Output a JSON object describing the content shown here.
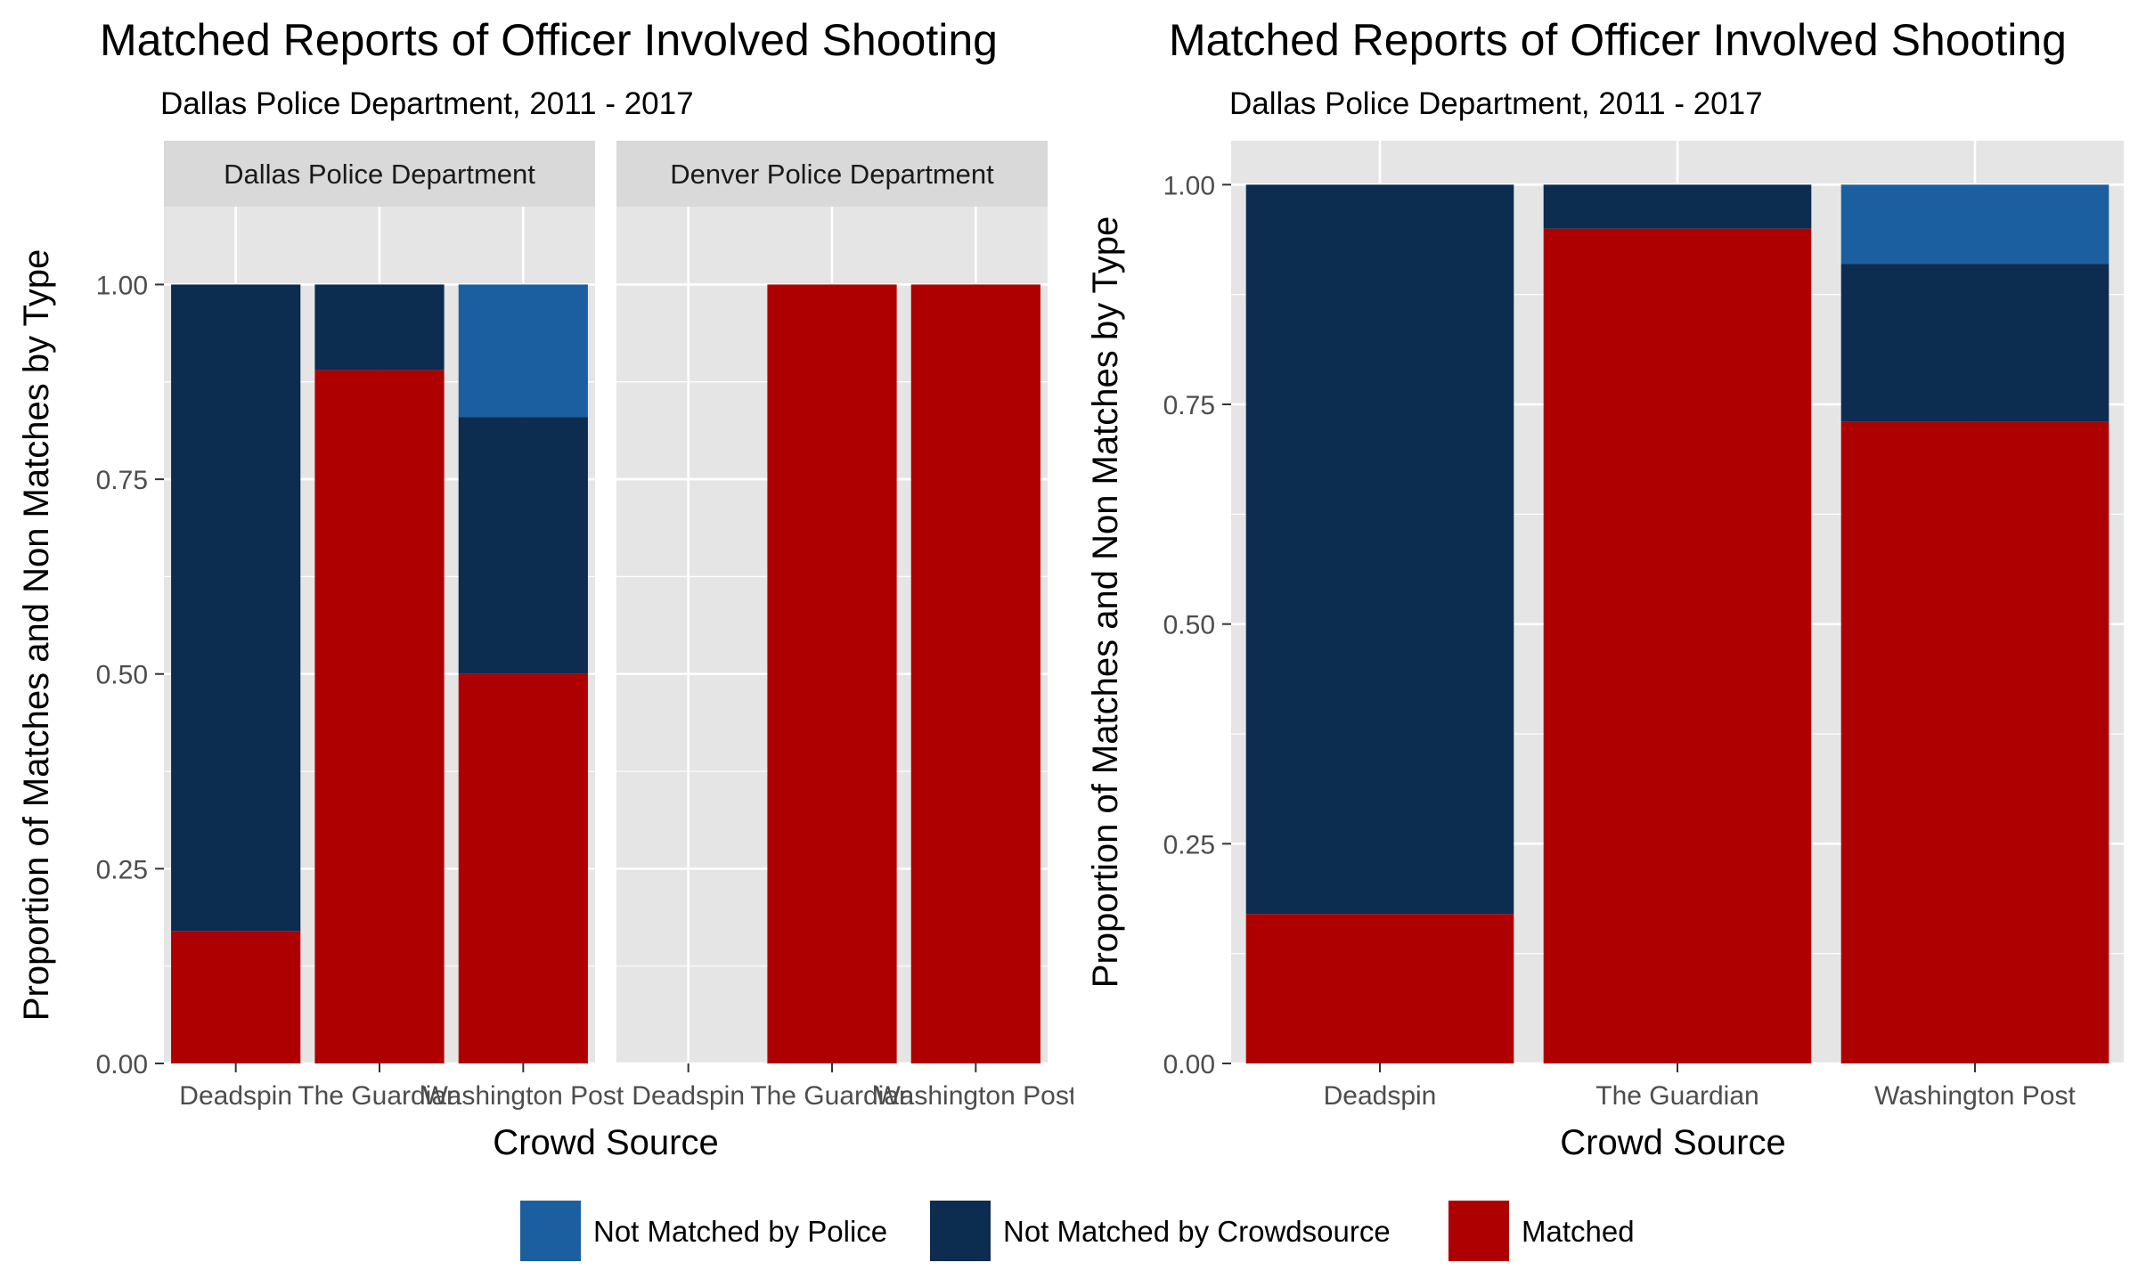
{
  "colors": {
    "matched": "#AE0000",
    "not_matched_by_crowdsource": "#0C2C50",
    "not_matched_by_police": "#1B5FA1",
    "panel_bg": "#E5E5E5",
    "strip_bg": "#D9D9D9",
    "grid": "#FFFFFF",
    "text": "#000000",
    "tick_text": "#4D4D4D"
  },
  "legend": {
    "position": "bottom",
    "items": [
      {
        "key": "not_matched_by_police",
        "label": "Not Matched by Police"
      },
      {
        "key": "not_matched_by_crowdsource",
        "label": "Not Matched by Crowdsource"
      },
      {
        "key": "matched",
        "label": "Matched"
      }
    ]
  },
  "chart_data": [
    {
      "type": "bar",
      "stacked": true,
      "faceted": true,
      "title": "Matched Reports of Officer Involved Shooting",
      "subtitle": "Dallas Police Department, 2011 - 2017",
      "xlabel": "Crowd Source",
      "ylabel": "Proportion of Matches and Non Matches by Type",
      "ylim": [
        0,
        1.1
      ],
      "yticks": [
        "0.00",
        "0.25",
        "0.50",
        "0.75",
        "1.00"
      ],
      "categories": [
        "Deadspin",
        "The Guardian",
        "Washington Post"
      ],
      "grid": true,
      "facets": [
        {
          "label": "Dallas Police Department",
          "series": [
            {
              "name": "Matched",
              "key": "matched",
              "values": [
                0.17,
                0.89,
                0.5
              ]
            },
            {
              "name": "Not Matched by Crowdsource",
              "key": "not_matched_by_crowdsource",
              "values": [
                0.83,
                0.11,
                0.33
              ]
            },
            {
              "name": "Not Matched by Police",
              "key": "not_matched_by_police",
              "values": [
                0,
                0,
                0.17
              ]
            }
          ]
        },
        {
          "label": "Denver Police Department",
          "series": [
            {
              "name": "Matched",
              "key": "matched",
              "values": [
                0,
                1.0,
                1.0
              ]
            },
            {
              "name": "Not Matched by Crowdsource",
              "key": "not_matched_by_crowdsource",
              "values": [
                0,
                0,
                0
              ]
            },
            {
              "name": "Not Matched by Police",
              "key": "not_matched_by_police",
              "values": [
                0,
                0,
                0
              ]
            }
          ]
        }
      ]
    },
    {
      "type": "bar",
      "stacked": true,
      "faceted": false,
      "title": "Matched Reports of Officer Involved Shooting",
      "subtitle": "Dallas Police Department, 2011 - 2017",
      "xlabel": "Crowd Source",
      "ylabel": "Proportion of Matches and Non Matches by Type",
      "ylim": [
        0,
        1.05
      ],
      "yticks": [
        "0.00",
        "0.25",
        "0.50",
        "0.75",
        "1.00"
      ],
      "categories": [
        "Deadspin",
        "The Guardian",
        "Washington Post"
      ],
      "grid": true,
      "series": [
        {
          "name": "Matched",
          "key": "matched",
          "values": [
            0.17,
            0.95,
            0.73
          ]
        },
        {
          "name": "Not Matched by Crowdsource",
          "key": "not_matched_by_crowdsource",
          "values": [
            0.83,
            0.05,
            0.18
          ]
        },
        {
          "name": "Not Matched by Police",
          "key": "not_matched_by_police",
          "values": [
            0,
            0,
            0.09
          ]
        }
      ]
    }
  ]
}
